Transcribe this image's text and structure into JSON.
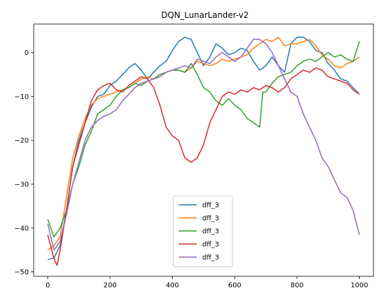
{
  "chart_data": {
    "type": "line",
    "title": "DQN_LunarLander-v2",
    "xlabel": "",
    "ylabel": "",
    "xlim": [
      -45,
      1045
    ],
    "ylim": [
      -51,
      6.5
    ],
    "xticks": [
      0,
      200,
      400,
      600,
      800,
      1000
    ],
    "yticks": [
      -50,
      -40,
      -30,
      -20,
      -10,
      0
    ],
    "grid": false,
    "legend_position": "bottom-center",
    "series": [
      {
        "name": "dff_3",
        "color": "#1f77b4",
        "points": [
          [
            0,
            -47.2
          ],
          [
            20,
            -46.8
          ],
          [
            40,
            -44
          ],
          [
            60,
            -36
          ],
          [
            80,
            -26
          ],
          [
            100,
            -20
          ],
          [
            120,
            -16
          ],
          [
            140,
            -12.5
          ],
          [
            160,
            -10
          ],
          [
            180,
            -9.5
          ],
          [
            200,
            -7.5
          ],
          [
            220,
            -6.5
          ],
          [
            240,
            -5
          ],
          [
            260,
            -3.5
          ],
          [
            280,
            -2.5
          ],
          [
            300,
            -4
          ],
          [
            320,
            -6
          ],
          [
            340,
            -4.5
          ],
          [
            360,
            -3
          ],
          [
            380,
            -2
          ],
          [
            400,
            0.5
          ],
          [
            420,
            2.5
          ],
          [
            440,
            3.5
          ],
          [
            460,
            3
          ],
          [
            480,
            0
          ],
          [
            500,
            -3
          ],
          [
            520,
            -1
          ],
          [
            540,
            2
          ],
          [
            560,
            1
          ],
          [
            580,
            -0.5
          ],
          [
            600,
            0
          ],
          [
            620,
            1
          ],
          [
            640,
            0.5
          ],
          [
            660,
            -2
          ],
          [
            680,
            -4
          ],
          [
            700,
            -3
          ],
          [
            720,
            -1
          ],
          [
            740,
            -3
          ],
          [
            760,
            -4.5
          ],
          [
            780,
            2
          ],
          [
            800,
            3.5
          ],
          [
            820,
            3.5
          ],
          [
            840,
            2.5
          ],
          [
            860,
            0.5
          ],
          [
            880,
            0
          ],
          [
            900,
            -2.5
          ],
          [
            920,
            -4
          ],
          [
            940,
            -6
          ],
          [
            960,
            -6.5
          ],
          [
            980,
            -8
          ],
          [
            1000,
            -9.5
          ]
        ]
      },
      {
        "name": "dff_3",
        "color": "#ff7f0e",
        "points": [
          [
            0,
            -45
          ],
          [
            20,
            -44
          ],
          [
            40,
            -42
          ],
          [
            60,
            -33
          ],
          [
            80,
            -24
          ],
          [
            100,
            -19
          ],
          [
            120,
            -15
          ],
          [
            140,
            -12
          ],
          [
            160,
            -10.5
          ],
          [
            180,
            -10
          ],
          [
            200,
            -9.5
          ],
          [
            220,
            -9
          ],
          [
            240,
            -8.5
          ],
          [
            260,
            -8
          ],
          [
            280,
            -7
          ],
          [
            300,
            -6
          ],
          [
            320,
            -5.5
          ],
          [
            340,
            -6
          ],
          [
            360,
            -5
          ],
          [
            380,
            -4.5
          ],
          [
            400,
            -4
          ],
          [
            420,
            -4
          ],
          [
            440,
            -4.5
          ],
          [
            460,
            -3.5
          ],
          [
            480,
            -2
          ],
          [
            500,
            -2.5
          ],
          [
            520,
            -3
          ],
          [
            540,
            -2.5
          ],
          [
            560,
            -1.5
          ],
          [
            580,
            -2
          ],
          [
            600,
            -1.5
          ],
          [
            620,
            -1
          ],
          [
            640,
            -0.5
          ],
          [
            660,
            1
          ],
          [
            680,
            2
          ],
          [
            700,
            3
          ],
          [
            720,
            2.5
          ],
          [
            740,
            3.5
          ],
          [
            760,
            1.5
          ],
          [
            780,
            2
          ],
          [
            800,
            2
          ],
          [
            820,
            2.5
          ],
          [
            840,
            3
          ],
          [
            860,
            1.5
          ],
          [
            880,
            -0.5
          ],
          [
            900,
            -1.5
          ],
          [
            920,
            -3
          ],
          [
            940,
            -3.5
          ],
          [
            960,
            -2.5
          ],
          [
            980,
            -2
          ],
          [
            1000,
            -1
          ]
        ]
      },
      {
        "name": "dff_3",
        "color": "#2ca02c",
        "points": [
          [
            0,
            -38
          ],
          [
            20,
            -42
          ],
          [
            40,
            -40
          ],
          [
            60,
            -36
          ],
          [
            80,
            -30
          ],
          [
            100,
            -26
          ],
          [
            120,
            -21
          ],
          [
            140,
            -18
          ],
          [
            160,
            -14
          ],
          [
            180,
            -13
          ],
          [
            200,
            -12
          ],
          [
            220,
            -10
          ],
          [
            240,
            -8.5
          ],
          [
            260,
            -8
          ],
          [
            280,
            -7
          ],
          [
            300,
            -7.5
          ],
          [
            320,
            -6.5
          ],
          [
            340,
            -6
          ],
          [
            360,
            -5
          ],
          [
            380,
            -4.5
          ],
          [
            400,
            -4
          ],
          [
            420,
            -4
          ],
          [
            440,
            -4.5
          ],
          [
            460,
            -2.5
          ],
          [
            480,
            -5
          ],
          [
            500,
            -8
          ],
          [
            520,
            -9
          ],
          [
            540,
            -11
          ],
          [
            560,
            -12
          ],
          [
            580,
            -10.5
          ],
          [
            600,
            -12
          ],
          [
            620,
            -13
          ],
          [
            640,
            -15
          ],
          [
            660,
            -16
          ],
          [
            680,
            -17
          ],
          [
            690,
            -9
          ],
          [
            700,
            -9
          ],
          [
            720,
            -7
          ],
          [
            740,
            -5.5
          ],
          [
            760,
            -5
          ],
          [
            780,
            -4.5
          ],
          [
            800,
            -3
          ],
          [
            820,
            -2
          ],
          [
            840,
            -1.5
          ],
          [
            860,
            -2
          ],
          [
            880,
            -1
          ],
          [
            900,
            0
          ],
          [
            920,
            -1
          ],
          [
            940,
            -0.5
          ],
          [
            960,
            -1.5
          ],
          [
            980,
            -2
          ],
          [
            1000,
            2.5
          ]
        ]
      },
      {
        "name": "dff_3",
        "color": "#d62728",
        "points": [
          [
            0,
            -41.5
          ],
          [
            20,
            -47
          ],
          [
            30,
            -48.5
          ],
          [
            40,
            -45
          ],
          [
            60,
            -36
          ],
          [
            80,
            -26
          ],
          [
            100,
            -21
          ],
          [
            120,
            -16
          ],
          [
            140,
            -11
          ],
          [
            160,
            -8.5
          ],
          [
            180,
            -7.5
          ],
          [
            200,
            -7
          ],
          [
            220,
            -8.5
          ],
          [
            240,
            -9
          ],
          [
            260,
            -7.5
          ],
          [
            280,
            -6.5
          ],
          [
            300,
            -5.5
          ],
          [
            320,
            -6
          ],
          [
            340,
            -8
          ],
          [
            360,
            -12
          ],
          [
            380,
            -17
          ],
          [
            400,
            -19
          ],
          [
            420,
            -20
          ],
          [
            440,
            -24
          ],
          [
            460,
            -25
          ],
          [
            480,
            -24
          ],
          [
            500,
            -21
          ],
          [
            520,
            -16
          ],
          [
            540,
            -13
          ],
          [
            560,
            -10
          ],
          [
            580,
            -9
          ],
          [
            600,
            -9.5
          ],
          [
            620,
            -8.5
          ],
          [
            640,
            -9
          ],
          [
            660,
            -8
          ],
          [
            680,
            -8.5
          ],
          [
            700,
            -7.5
          ],
          [
            720,
            -8
          ],
          [
            740,
            -9
          ],
          [
            760,
            -8
          ],
          [
            780,
            -6
          ],
          [
            800,
            -5
          ],
          [
            820,
            -4
          ],
          [
            840,
            -4.5
          ],
          [
            860,
            -3.5
          ],
          [
            880,
            -4
          ],
          [
            900,
            -5.5
          ],
          [
            920,
            -6
          ],
          [
            940,
            -6.5
          ],
          [
            960,
            -7
          ],
          [
            980,
            -8.5
          ],
          [
            1000,
            -9.5
          ]
        ]
      },
      {
        "name": "dff_3",
        "color": "#9467bd",
        "points": [
          [
            0,
            -39
          ],
          [
            20,
            -45
          ],
          [
            40,
            -43
          ],
          [
            60,
            -37
          ],
          [
            80,
            -30
          ],
          [
            100,
            -25
          ],
          [
            120,
            -20
          ],
          [
            140,
            -17
          ],
          [
            160,
            -15.5
          ],
          [
            180,
            -14.5
          ],
          [
            200,
            -14
          ],
          [
            220,
            -13
          ],
          [
            240,
            -11
          ],
          [
            260,
            -9.5
          ],
          [
            280,
            -8
          ],
          [
            300,
            -7
          ],
          [
            320,
            -6.5
          ],
          [
            340,
            -6
          ],
          [
            360,
            -5.5
          ],
          [
            380,
            -4.5
          ],
          [
            400,
            -4
          ],
          [
            420,
            -3.5
          ],
          [
            440,
            -3
          ],
          [
            460,
            -3.5
          ],
          [
            480,
            -1.5
          ],
          [
            500,
            -2
          ],
          [
            520,
            -2.5
          ],
          [
            540,
            -1
          ],
          [
            560,
            0
          ],
          [
            580,
            -1
          ],
          [
            600,
            -2
          ],
          [
            620,
            -1
          ],
          [
            640,
            1
          ],
          [
            660,
            3
          ],
          [
            680,
            3
          ],
          [
            700,
            2
          ],
          [
            720,
            0
          ],
          [
            740,
            -3
          ],
          [
            760,
            -6
          ],
          [
            780,
            -9
          ],
          [
            800,
            -10
          ],
          [
            820,
            -14
          ],
          [
            840,
            -17
          ],
          [
            860,
            -20
          ],
          [
            880,
            -24
          ],
          [
            900,
            -26
          ],
          [
            920,
            -29
          ],
          [
            940,
            -32
          ],
          [
            960,
            -33
          ],
          [
            980,
            -36
          ],
          [
            1000,
            -41.5
          ]
        ]
      }
    ]
  }
}
